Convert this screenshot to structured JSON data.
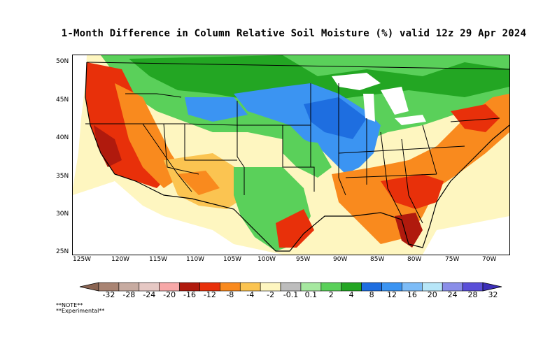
{
  "title": "1-Month Difference in Column Relative Soil Moisture (%) valid 12z 29 Apr 2024",
  "latitude_labels": [
    "50N",
    "45N",
    "40N",
    "35N",
    "30N",
    "25N"
  ],
  "longitude_labels": [
    "125W",
    "120W",
    "115W",
    "110W",
    "105W",
    "100W",
    "95W",
    "90W",
    "85W",
    "80W",
    "75W",
    "70W"
  ],
  "colorbar": {
    "tick_labels": [
      "-32",
      "-28",
      "-24",
      "-20",
      "-16",
      "-12",
      "-8",
      "-4",
      "-2",
      "-0.1",
      "0.1",
      "2",
      "4",
      "8",
      "12",
      "16",
      "20",
      "24",
      "28",
      "32"
    ],
    "colors": [
      "#8a6452",
      "#a98473",
      "#c7aba1",
      "#e6c8c4",
      "#f7a8a8",
      "#b01a0d",
      "#e8300a",
      "#f98a1e",
      "#fbc451",
      "#fef6c0",
      "#bdbdbd",
      "#a6e8a0",
      "#5ad05a",
      "#23a623",
      "#1e6ee0",
      "#3b94f2",
      "#7dbcf7",
      "#b7e6f8",
      "#8a8ee8",
      "#5a4fd8",
      "#3c2fb8"
    ]
  },
  "notes": [
    "**NOTE**",
    "**Experimental**"
  ]
}
